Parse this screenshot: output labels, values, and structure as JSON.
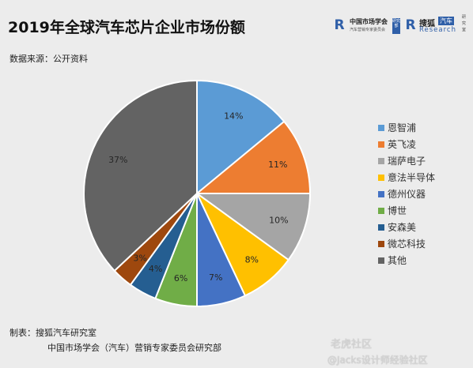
{
  "header": {
    "title": "2019年全球汽车芯片企业市场份额",
    "source": "数据来源：公开资料"
  },
  "logos": {
    "cma_name": "中国市场学会",
    "cma_sub": "汽车营销专家委员会",
    "cma_badge": "研究部",
    "sohu_name": "搜狐",
    "sohu_badge": "汽车",
    "sohu_research": "Research",
    "sohu_side": "研究室"
  },
  "footer": {
    "line1": "制表：搜狐汽车研究室",
    "line2": "中国市场学会（汽车）营销专家委员会研究部"
  },
  "watermark": {
    "line1": "老虎社区",
    "line2": "@Jacks设计师经验社区"
  },
  "chart_data": {
    "type": "pie",
    "title": "2019年全球汽车芯片企业市场份额",
    "start_angle_deg": 0,
    "direction": "clockwise",
    "legend_position": "right",
    "slices": [
      {
        "label": "恩智浦",
        "value": 14,
        "display": "14%",
        "color": "#5b9bd5"
      },
      {
        "label": "英飞凌",
        "value": 11,
        "display": "11%",
        "color": "#ed7d31"
      },
      {
        "label": "瑞萨电子",
        "value": 10,
        "display": "10%",
        "color": "#a5a5a5"
      },
      {
        "label": "意法半导体",
        "value": 8,
        "display": "8%",
        "color": "#ffc000"
      },
      {
        "label": "德州仪器",
        "value": 7,
        "display": "7%",
        "color": "#4472c4"
      },
      {
        "label": "博世",
        "value": 6,
        "display": "6%",
        "color": "#70ad47"
      },
      {
        "label": "安森美",
        "value": 4,
        "display": "4%",
        "color": "#255e91"
      },
      {
        "label": "微芯科技",
        "value": 3,
        "display": "3%",
        "color": "#9e480e"
      },
      {
        "label": "其他",
        "value": 37,
        "display": "37%",
        "color": "#636363"
      }
    ]
  }
}
